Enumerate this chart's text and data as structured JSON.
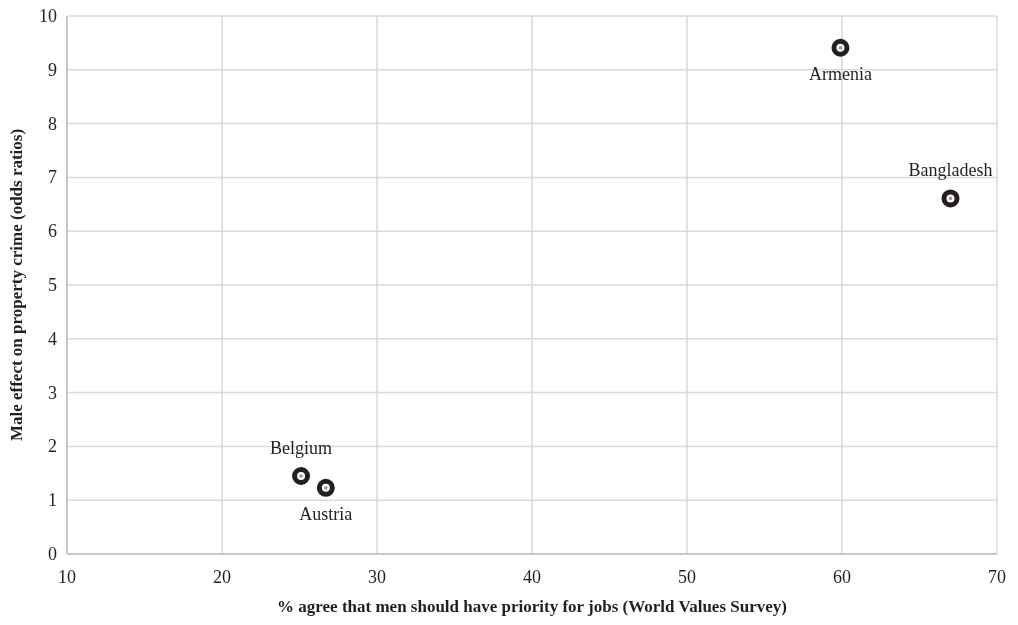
{
  "chart_data": {
    "type": "scatter",
    "xlabel": "% agree that men should have priority for jobs (World Values Survey)",
    "ylabel": "Male effect on property crime (odds ratios)",
    "series": [
      {
        "name": "Armenia",
        "color": "#231f20",
        "x": [
          59.9
        ],
        "values": [
          9.41
        ]
      },
      {
        "name": "Bangladesh",
        "color": "#231f20",
        "x": [
          67.0
        ],
        "values": [
          6.61
        ]
      },
      {
        "name": "Belgium",
        "color": "#231f20",
        "x": [
          25.1
        ],
        "values": [
          1.45
        ]
      },
      {
        "name": "Austria",
        "color": "#231f20",
        "x": [
          26.7
        ],
        "values": [
          1.23
        ]
      }
    ],
    "xlim": [
      10,
      70
    ],
    "xticks": [
      10,
      20,
      30,
      40,
      50,
      60,
      70
    ],
    "ylim": [
      0,
      10
    ],
    "yticks": [
      0,
      1,
      2,
      3,
      4,
      5,
      6,
      7,
      8,
      9,
      10
    ],
    "grid": true,
    "marker": "circle"
  }
}
